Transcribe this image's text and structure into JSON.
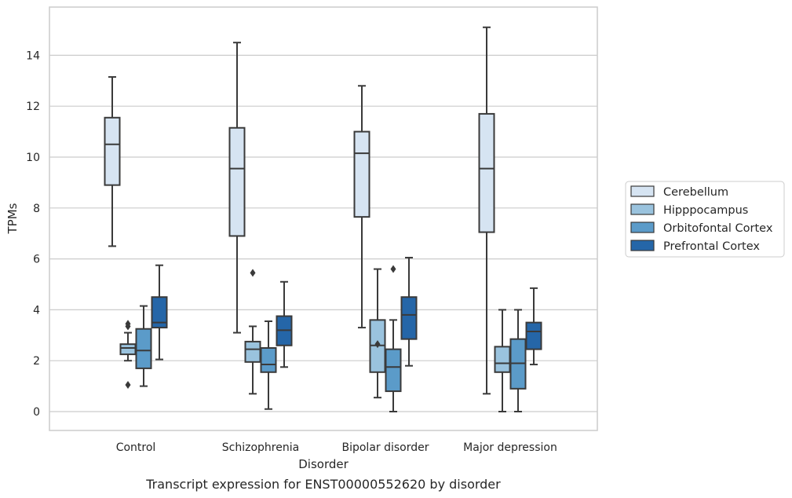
{
  "chart_data": {
    "type": "box",
    "title": "",
    "caption": "Transcript expression for ENST00000552620 by disorder",
    "xlabel": "Disorder",
    "ylabel": "TPMs",
    "ylim": [
      -0.7,
      15.9
    ],
    "yticks": [
      0,
      2,
      4,
      6,
      8,
      10,
      12,
      14
    ],
    "grid": "horizontal",
    "legend_position": "right",
    "categories": [
      "Control",
      "Schizophrenia",
      "Bipolar disorder",
      "Major depression"
    ],
    "series": [
      {
        "name": "Cerebellum",
        "color": "#d6e4f2",
        "boxes": [
          {
            "whislo": 6.5,
            "q1": 8.9,
            "med": 10.5,
            "q3": 11.55,
            "whishi": 13.15,
            "fliers": []
          },
          {
            "whislo": 3.1,
            "q1": 6.9,
            "med": 9.55,
            "q3": 11.15,
            "whishi": 14.5,
            "fliers": []
          },
          {
            "whislo": 3.3,
            "q1": 7.65,
            "med": 10.15,
            "q3": 11.0,
            "whishi": 12.8,
            "fliers": []
          },
          {
            "whislo": 0.7,
            "q1": 7.05,
            "med": 9.55,
            "q3": 11.7,
            "whishi": 15.1,
            "fliers": []
          }
        ]
      },
      {
        "name": "Hipppocampus",
        "color": "#9ac3de",
        "boxes": [
          {
            "whislo": 2.0,
            "q1": 2.25,
            "med": 2.5,
            "q3": 2.65,
            "whishi": 3.1,
            "fliers": [
              1.05,
              3.35,
              3.45
            ]
          },
          {
            "whislo": 0.7,
            "q1": 1.95,
            "med": 2.45,
            "q3": 2.75,
            "whishi": 3.35,
            "fliers": [
              5.45
            ]
          },
          {
            "whislo": 0.55,
            "q1": 1.55,
            "med": 2.6,
            "q3": 3.6,
            "whishi": 5.6,
            "fliers": [
              2.65
            ]
          },
          {
            "whislo": 0.0,
            "q1": 1.55,
            "med": 1.9,
            "q3": 2.55,
            "whishi": 4.0,
            "fliers": []
          }
        ]
      },
      {
        "name": "Orbitofontal Cortex",
        "color": "#5b9bc9",
        "boxes": [
          {
            "whislo": 1.0,
            "q1": 1.7,
            "med": 2.4,
            "q3": 3.25,
            "whishi": 4.15,
            "fliers": []
          },
          {
            "whislo": 0.1,
            "q1": 1.55,
            "med": 1.85,
            "q3": 2.5,
            "whishi": 3.55,
            "fliers": []
          },
          {
            "whislo": 0.0,
            "q1": 0.8,
            "med": 1.75,
            "q3": 2.45,
            "whishi": 3.6,
            "fliers": [
              5.6
            ]
          },
          {
            "whislo": 0.0,
            "q1": 0.9,
            "med": 1.9,
            "q3": 2.85,
            "whishi": 4.0,
            "fliers": []
          }
        ]
      },
      {
        "name": "Prefrontal Cortex",
        "color": "#2566a8",
        "boxes": [
          {
            "whislo": 2.05,
            "q1": 3.3,
            "med": 3.5,
            "q3": 4.5,
            "whishi": 5.75,
            "fliers": []
          },
          {
            "whislo": 1.75,
            "q1": 2.6,
            "med": 3.2,
            "q3": 3.75,
            "whishi": 5.1,
            "fliers": []
          },
          {
            "whislo": 1.8,
            "q1": 2.85,
            "med": 3.8,
            "q3": 4.5,
            "whishi": 6.05,
            "fliers": []
          },
          {
            "whislo": 1.85,
            "q1": 2.45,
            "med": 3.15,
            "q3": 3.5,
            "whishi": 4.85,
            "fliers": []
          }
        ]
      }
    ]
  }
}
